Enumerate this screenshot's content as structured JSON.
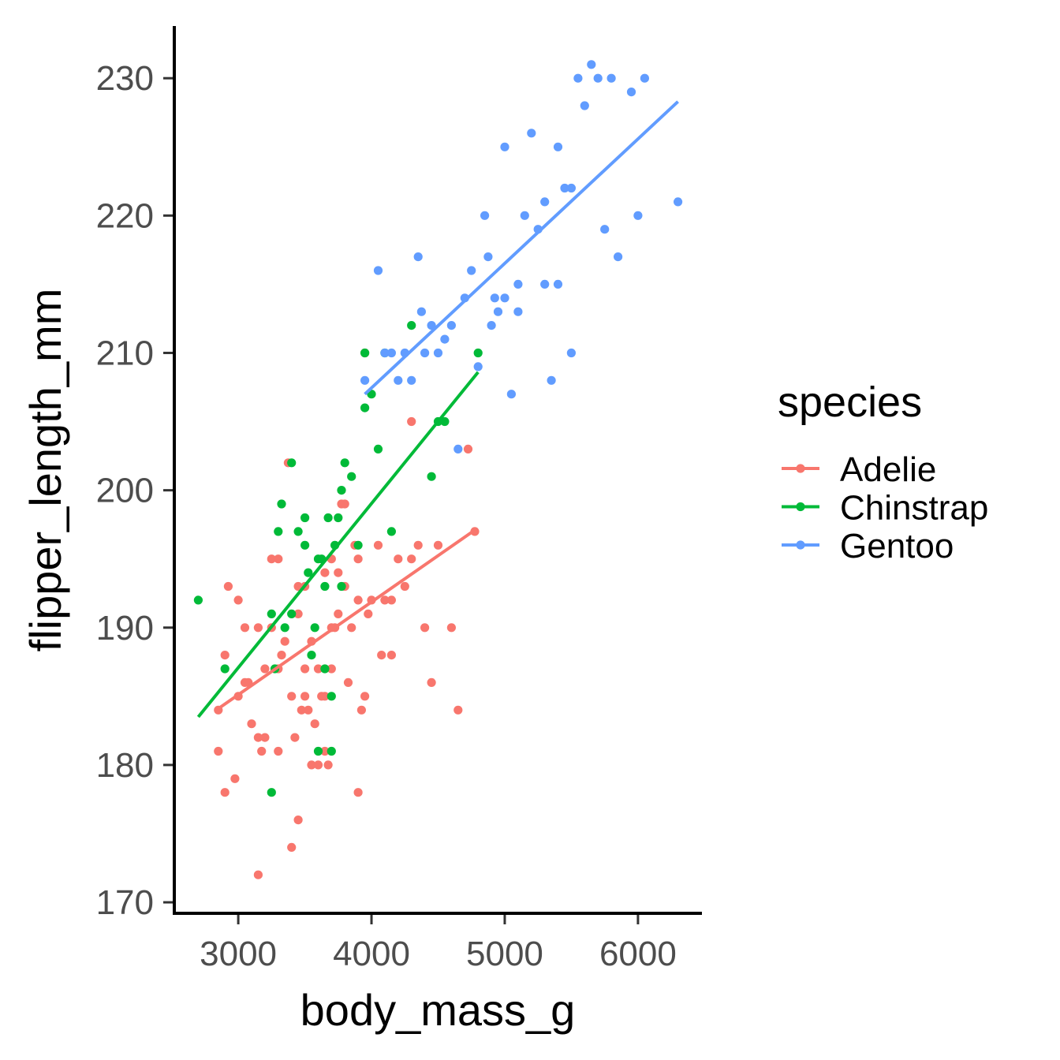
{
  "chart_data": {
    "type": "scatter",
    "xlabel": "body_mass_g",
    "ylabel": "flipper_length_mm",
    "xlim": [
      2520,
      6480
    ],
    "ylim": [
      169.2,
      233.8
    ],
    "x_ticks": [
      3000,
      4000,
      5000,
      6000
    ],
    "y_ticks": [
      170,
      180,
      190,
      200,
      210,
      220,
      230
    ],
    "grid": false,
    "legend": {
      "title": "species",
      "position": "right"
    },
    "series": [
      {
        "name": "Adelie",
        "color": "#F8766D",
        "fit": [
          [
            2850,
            184.1
          ],
          [
            4775,
            197.1
          ]
        ],
        "points": [
          [
            2850,
            184
          ],
          [
            2850,
            181
          ],
          [
            2900,
            178
          ],
          [
            2900,
            188
          ],
          [
            2925,
            193
          ],
          [
            2975,
            179
          ],
          [
            3000,
            185
          ],
          [
            3000,
            192
          ],
          [
            3050,
            186
          ],
          [
            3050,
            190
          ],
          [
            3075,
            186
          ],
          [
            3100,
            183
          ],
          [
            3150,
            190
          ],
          [
            3150,
            182
          ],
          [
            3150,
            172
          ],
          [
            3175,
            181
          ],
          [
            3200,
            182
          ],
          [
            3200,
            187
          ],
          [
            3250,
            195
          ],
          [
            3250,
            190
          ],
          [
            3300,
            181
          ],
          [
            3300,
            187
          ],
          [
            3300,
            195
          ],
          [
            3325,
            188
          ],
          [
            3350,
            189
          ],
          [
            3400,
            185
          ],
          [
            3400,
            174
          ],
          [
            3425,
            182
          ],
          [
            3450,
            176
          ],
          [
            3450,
            193
          ],
          [
            3450,
            191
          ],
          [
            3475,
            184
          ],
          [
            3500,
            193
          ],
          [
            3500,
            187
          ],
          [
            3525,
            184
          ],
          [
            3550,
            180
          ],
          [
            3550,
            189
          ],
          [
            3575,
            183
          ],
          [
            3600,
            180
          ],
          [
            3600,
            187
          ],
          [
            3625,
            185
          ],
          [
            3650,
            185
          ],
          [
            3650,
            181
          ],
          [
            3675,
            180
          ],
          [
            3700,
            190
          ],
          [
            3700,
            195
          ],
          [
            3700,
            187
          ],
          [
            3725,
            190
          ],
          [
            3750,
            194
          ],
          [
            3750,
            191
          ],
          [
            3775,
            199
          ],
          [
            3800,
            193
          ],
          [
            3800,
            199
          ],
          [
            3825,
            186
          ],
          [
            3850,
            190
          ],
          [
            3875,
            196
          ],
          [
            3900,
            192
          ],
          [
            3900,
            178
          ],
          [
            3925,
            184
          ],
          [
            3950,
            185
          ],
          [
            3950,
            210
          ],
          [
            3975,
            191
          ],
          [
            4000,
            192
          ],
          [
            4050,
            196
          ],
          [
            4075,
            188
          ],
          [
            4100,
            192
          ],
          [
            4150,
            188
          ],
          [
            4200,
            195
          ],
          [
            4250,
            193
          ],
          [
            4300,
            195
          ],
          [
            4300,
            205
          ],
          [
            4350,
            196
          ],
          [
            4400,
            190
          ],
          [
            4450,
            186
          ],
          [
            4500,
            196
          ],
          [
            4600,
            190
          ],
          [
            4650,
            184
          ],
          [
            4725,
            203
          ],
          [
            4775,
            197
          ],
          [
            3375,
            202
          ],
          [
            3500,
            185
          ],
          [
            3650,
            194
          ],
          [
            3900,
            195
          ],
          [
            4150,
            192
          ]
        ]
      },
      {
        "name": "Chinstrap",
        "color": "#00BA38",
        "fit": [
          [
            2700,
            183.5
          ],
          [
            4800,
            208.6
          ]
        ],
        "points": [
          [
            2700,
            192
          ],
          [
            2900,
            187
          ],
          [
            3250,
            178
          ],
          [
            3250,
            191
          ],
          [
            3275,
            187
          ],
          [
            3300,
            197
          ],
          [
            3325,
            199
          ],
          [
            3350,
            190
          ],
          [
            3400,
            202
          ],
          [
            3400,
            191
          ],
          [
            3450,
            197
          ],
          [
            3500,
            196
          ],
          [
            3525,
            194
          ],
          [
            3550,
            188
          ],
          [
            3600,
            181
          ],
          [
            3600,
            195
          ],
          [
            3650,
            193
          ],
          [
            3650,
            187
          ],
          [
            3675,
            198
          ],
          [
            3700,
            181
          ],
          [
            3700,
            185
          ],
          [
            3725,
            196
          ],
          [
            3750,
            198
          ],
          [
            3775,
            193
          ],
          [
            3800,
            202
          ],
          [
            3850,
            201
          ],
          [
            3900,
            196
          ],
          [
            3950,
            206
          ],
          [
            3950,
            210
          ],
          [
            4000,
            207
          ],
          [
            4050,
            203
          ],
          [
            4100,
            210
          ],
          [
            4150,
            197
          ],
          [
            4300,
            212
          ],
          [
            4450,
            201
          ],
          [
            4500,
            205
          ],
          [
            4550,
            205
          ],
          [
            4800,
            210
          ],
          [
            3500,
            198
          ],
          [
            3575,
            190
          ],
          [
            3625,
            195
          ],
          [
            3775,
            200
          ]
        ]
      },
      {
        "name": "Gentoo",
        "color": "#619CFF",
        "fit": [
          [
            3950,
            207.0
          ],
          [
            6300,
            228.3
          ]
        ],
        "points": [
          [
            3950,
            208
          ],
          [
            4050,
            216
          ],
          [
            4100,
            210
          ],
          [
            4150,
            210
          ],
          [
            4200,
            208
          ],
          [
            4250,
            210
          ],
          [
            4300,
            208
          ],
          [
            4350,
            217
          ],
          [
            4375,
            213
          ],
          [
            4400,
            210
          ],
          [
            4450,
            212
          ],
          [
            4500,
            210
          ],
          [
            4550,
            211
          ],
          [
            4600,
            212
          ],
          [
            4650,
            203
          ],
          [
            4700,
            214
          ],
          [
            4750,
            216
          ],
          [
            4800,
            209
          ],
          [
            4850,
            220
          ],
          [
            4875,
            217
          ],
          [
            4900,
            212
          ],
          [
            4925,
            214
          ],
          [
            4950,
            213
          ],
          [
            5000,
            225
          ],
          [
            5050,
            207
          ],
          [
            5100,
            215
          ],
          [
            5150,
            220
          ],
          [
            5200,
            226
          ],
          [
            5250,
            219
          ],
          [
            5300,
            215
          ],
          [
            5350,
            208
          ],
          [
            5400,
            225
          ],
          [
            5450,
            222
          ],
          [
            5500,
            210
          ],
          [
            5550,
            230
          ],
          [
            5600,
            228
          ],
          [
            5650,
            231
          ],
          [
            5700,
            230
          ],
          [
            5750,
            219
          ],
          [
            5800,
            230
          ],
          [
            5850,
            217
          ],
          [
            5950,
            229
          ],
          [
            6000,
            220
          ],
          [
            6050,
            230
          ],
          [
            6300,
            221
          ],
          [
            5000,
            214
          ],
          [
            5100,
            213
          ],
          [
            5300,
            221
          ],
          [
            5400,
            215
          ],
          [
            5500,
            222
          ]
        ]
      }
    ]
  }
}
